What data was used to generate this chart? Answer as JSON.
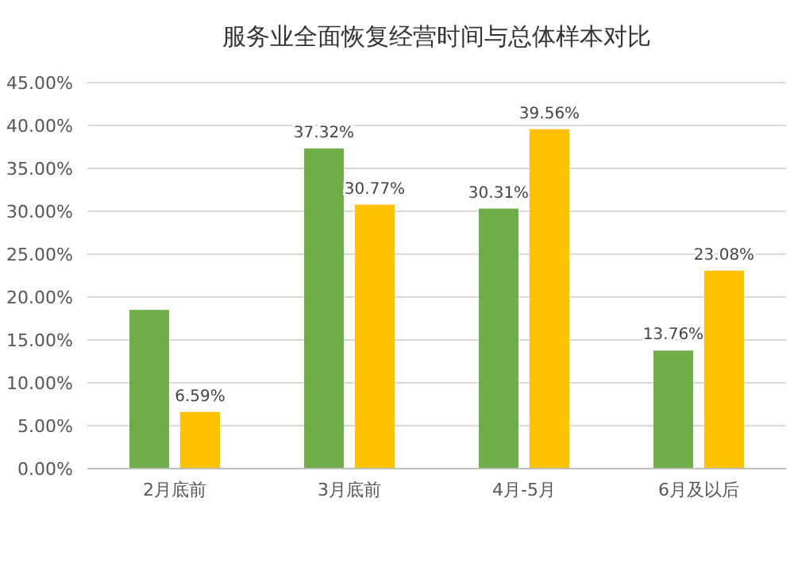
{
  "chart_data": {
    "type": "bar",
    "title": "服务业全面恢复经营时间与总体样本对比",
    "categories": [
      "2月底前",
      "3月底前",
      "4月-5月",
      "6月及以后"
    ],
    "series": [
      {
        "color": "#70ad47",
        "values": [
          18.5,
          37.32,
          30.31,
          13.76
        ],
        "value_labels": [
          null,
          "37.32%",
          "30.31%",
          "13.76%"
        ]
      },
      {
        "color": "#ffc000",
        "values": [
          6.59,
          30.77,
          39.56,
          23.08
        ],
        "value_labels": [
          "6.59%",
          "30.77%",
          "39.56%",
          "23.08%"
        ]
      }
    ],
    "ylim": [
      0,
      45
    ],
    "yticks": [
      {
        "value": 0,
        "label": "0.00%"
      },
      {
        "value": 5,
        "label": "5.00%"
      },
      {
        "value": 10,
        "label": "10.00%"
      },
      {
        "value": 15,
        "label": "15.00%"
      },
      {
        "value": 20,
        "label": "20.00%"
      },
      {
        "value": 25,
        "label": "25.00%"
      },
      {
        "value": 30,
        "label": "30.00%"
      },
      {
        "value": 35,
        "label": "35.00%"
      },
      {
        "value": 40,
        "label": "40.00%"
      },
      {
        "value": 45,
        "label": "45.00%"
      }
    ],
    "grid": "y"
  }
}
